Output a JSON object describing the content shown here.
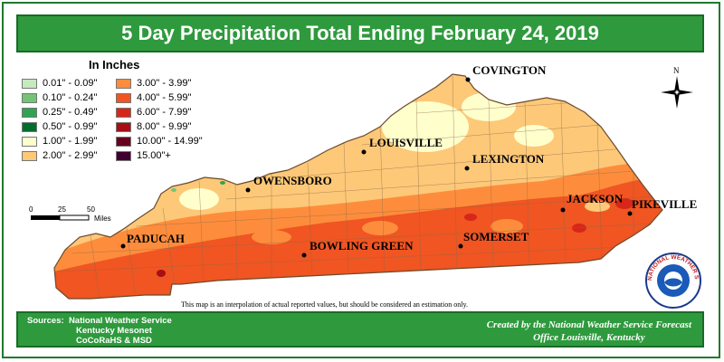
{
  "title": "5 Day Precipitation Total Ending February 24, 2019",
  "legend": {
    "title": "In Inches",
    "items": [
      {
        "label": "0.01\" - 0.09\"",
        "color": "#c7e9c0"
      },
      {
        "label": "0.10\" - 0.24\"",
        "color": "#74c476"
      },
      {
        "label": "0.25\" - 0.49\"",
        "color": "#31a354"
      },
      {
        "label": "0.50\" - 0.99\"",
        "color": "#006d2c"
      },
      {
        "label": "1.00\" - 1.99\"",
        "color": "#ffffcc"
      },
      {
        "label": "2.00\" - 2.99\"",
        "color": "#fdc878"
      },
      {
        "label": "3.00\" - 3.99\"",
        "color": "#fd8d3c"
      },
      {
        "label": "4.00\" - 5.99\"",
        "color": "#f05522"
      },
      {
        "label": "6.00\" - 7.99\"",
        "color": "#d7261a"
      },
      {
        "label": "8.00\" - 9.99\"",
        "color": "#a50f15"
      },
      {
        "label": "10.00\" - 14.99\"",
        "color": "#67001f"
      },
      {
        "label": "15.00\"+",
        "color": "#3f0030"
      }
    ]
  },
  "scale": {
    "ticks": [
      "0",
      "25",
      "50"
    ],
    "unit": "Miles"
  },
  "north_label": "N",
  "cities": {
    "covington": "COVINGTON",
    "louisville": "LOUISVILLE",
    "lexington": "LEXINGTON",
    "owensboro": "OWENSBORO",
    "jackson": "JACKSON",
    "pikeville": "PIKEVILLE",
    "paducah": "PADUCAH",
    "bowling_green": "BOWLING GREEN",
    "somerset": "SOMERSET"
  },
  "note": "This map is an interpolation of actual reported values, but should be considered an estimation only.",
  "sources": {
    "label": "Sources:",
    "lines": [
      "National Weather Service",
      "Kentucky Mesonet",
      "CoCoRaHS & MSD"
    ]
  },
  "credit": {
    "line1": "Created by the National Weather Service Forecast",
    "line2": "Office Louisville, Kentucky"
  },
  "logo_text": "NATIONAL WEATHER SERVICE"
}
